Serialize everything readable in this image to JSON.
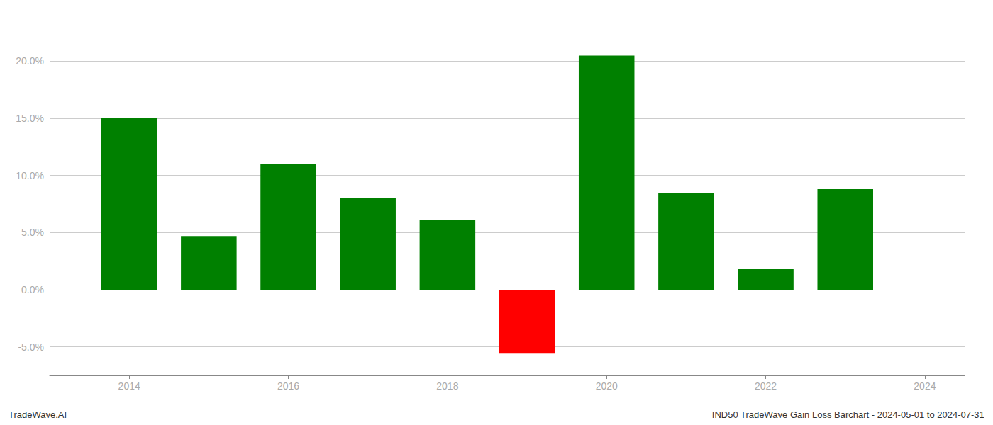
{
  "chart_data": {
    "type": "bar",
    "x": [
      2014,
      2015,
      2016,
      2017,
      2018,
      2019,
      2020,
      2021,
      2022,
      2023
    ],
    "values": [
      0.15,
      0.047,
      0.11,
      0.08,
      0.061,
      -0.056,
      0.205,
      0.085,
      0.018,
      0.088
    ],
    "colors": [
      "#008000",
      "#008000",
      "#008000",
      "#008000",
      "#008000",
      "#ff0000",
      "#008000",
      "#008000",
      "#008000",
      "#008000"
    ],
    "xlim": [
      2013.0,
      2024.5
    ],
    "xticks": [
      2014,
      2016,
      2018,
      2020,
      2022,
      2024
    ],
    "ylim": [
      -0.075,
      0.235
    ],
    "yticks": [
      {
        "value": -0.05,
        "label": "-5.0%"
      },
      {
        "value": 0.0,
        "label": "0.0%"
      },
      {
        "value": 0.05,
        "label": "5.0%"
      },
      {
        "value": 0.1,
        "label": "10.0%"
      },
      {
        "value": 0.15,
        "label": "15.0%"
      },
      {
        "value": 0.2,
        "label": "20.0%"
      }
    ],
    "grid": true,
    "annotations": [
      "TradeWave.AI",
      "IND50 TradeWave Gain Loss Barchart - 2024-05-01 to 2024-07-31"
    ]
  }
}
